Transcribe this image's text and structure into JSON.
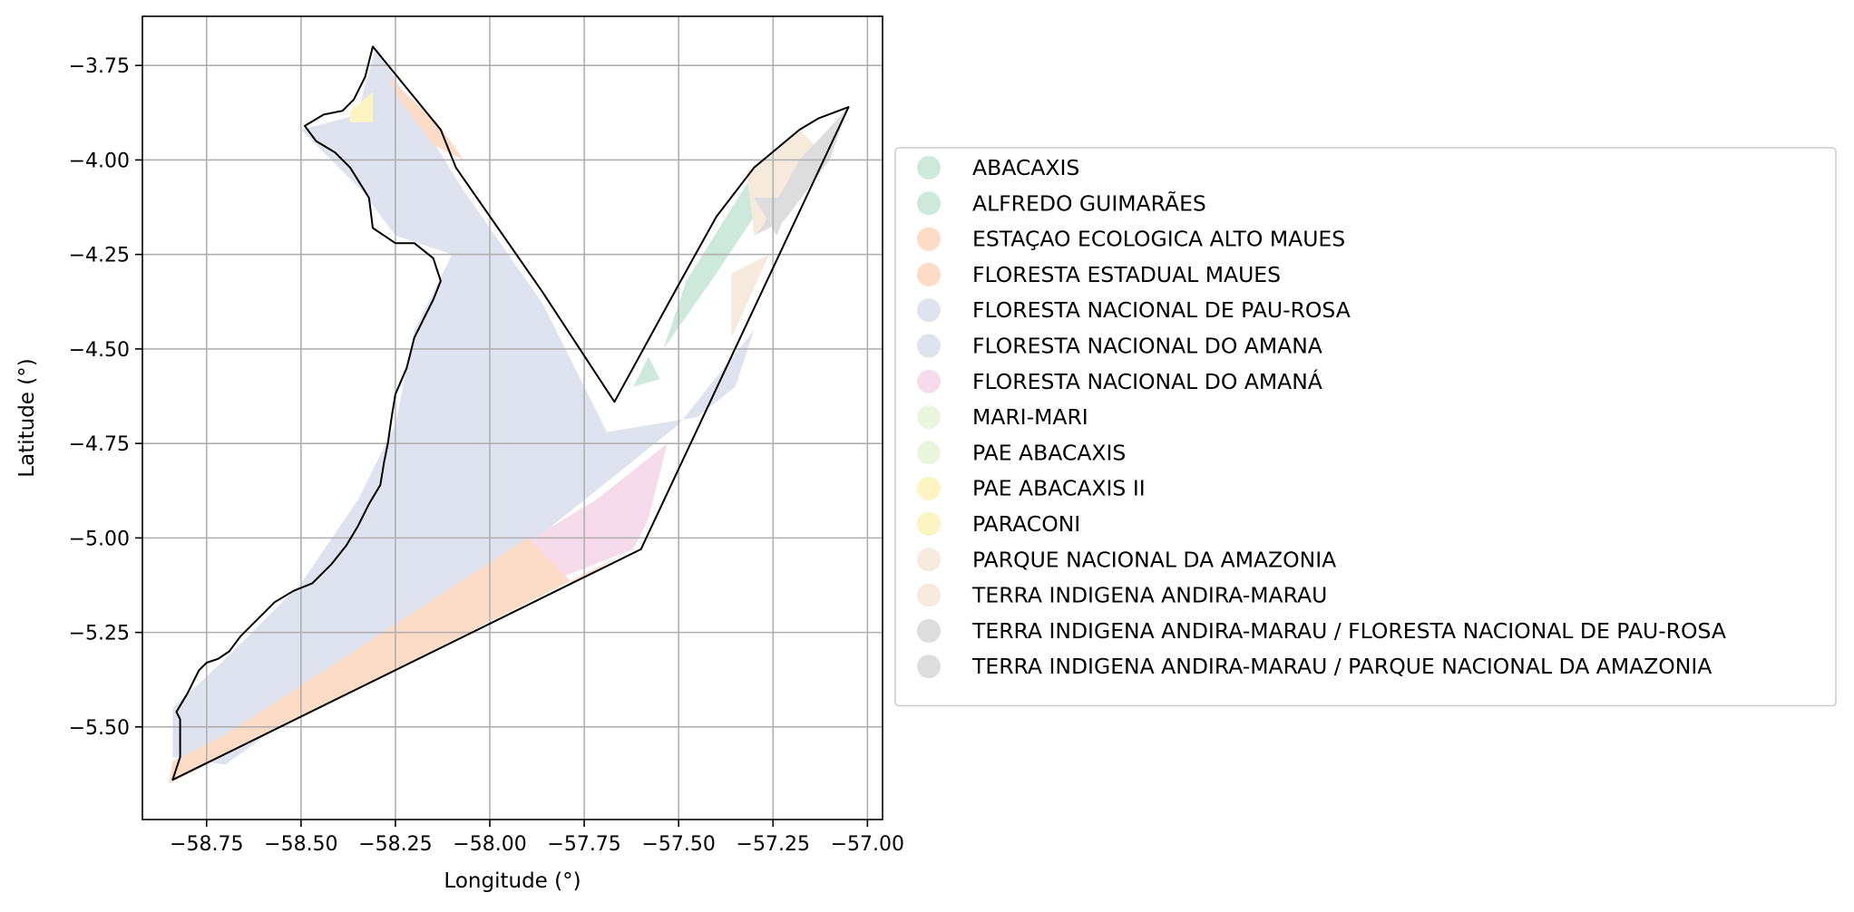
{
  "chart_data": {
    "type": "map",
    "title": "",
    "xlabel": "Longitude (°)",
    "ylabel": "Latitude (°)",
    "xlim": [
      -58.92,
      -56.96
    ],
    "ylim": [
      -5.745,
      -3.62
    ],
    "xticks": [
      -58.75,
      -58.5,
      -58.25,
      -58.0,
      -57.75,
      -57.5,
      -57.25,
      -57.0
    ],
    "xtick_labels": [
      "−58.75",
      "−58.50",
      "−58.25",
      "−58.00",
      "−57.75",
      "−57.50",
      "−57.25",
      "−57.00"
    ],
    "yticks": [
      -3.75,
      -4.0,
      -4.25,
      -4.5,
      -4.75,
      -5.0,
      -5.25,
      -5.5
    ],
    "ytick_labels": [
      "−3.75",
      "−4.00",
      "−4.25",
      "−4.50",
      "−4.75",
      "−5.00",
      "−5.25",
      "−5.50"
    ],
    "grid": true,
    "legend_position": "right",
    "legend": [
      {
        "label": "ABACAXIS",
        "color": "#cde9db"
      },
      {
        "label": "ALFREDO GUIMARÃES",
        "color": "#cde9db"
      },
      {
        "label": "ESTAÇAO ECOLOGICA ALTO MAUES",
        "color": "#fcdcc6"
      },
      {
        "label": "FLORESTA ESTADUAL MAUES",
        "color": "#fcdcc6"
      },
      {
        "label": "FLORESTA NACIONAL DE PAU-ROSA",
        "color": "#dfe3ef"
      },
      {
        "label": "FLORESTA NACIONAL DO AMANA",
        "color": "#dfe3ef"
      },
      {
        "label": "FLORESTA NACIONAL DO AMANÁ",
        "color": "#f6dbeb"
      },
      {
        "label": "MARI-MARI",
        "color": "#eaf6dc"
      },
      {
        "label": "PAE ABACAXIS",
        "color": "#eaf6dc"
      },
      {
        "label": "PAE ABACAXIS II",
        "color": "#fdf4c4"
      },
      {
        "label": "PARACONI",
        "color": "#fdf4c4"
      },
      {
        "label": "PARQUE NACIONAL DA AMAZONIA",
        "color": "#f5eadc"
      },
      {
        "label": "TERRA INDIGENA ANDIRA-MARAU",
        "color": "#f5eadc"
      },
      {
        "label": "TERRA INDIGENA ANDIRA-MARAU / FLORESTA NACIONAL DE PAU-ROSA",
        "color": "#dddddd"
      },
      {
        "label": "TERRA INDIGENA ANDIRA-MARAU / PARQUE NACIONAL DA AMAZONIA",
        "color": "#dddddd"
      }
    ],
    "regions": [
      {
        "name": "FLORESTA NACIONAL DE PAU-ROSA",
        "color": "#dfe3ef",
        "coords": [
          [
            -58.3,
            -3.7
          ],
          [
            -58.2,
            -3.87
          ],
          [
            -58.07,
            -4.08
          ],
          [
            -57.86,
            -4.38
          ],
          [
            -57.69,
            -4.72
          ],
          [
            -57.45,
            -4.68
          ],
          [
            -57.35,
            -4.6
          ],
          [
            -57.3,
            -4.45
          ],
          [
            -57.5,
            -4.7
          ],
          [
            -57.85,
            -4.98
          ],
          [
            -58.7,
            -5.6
          ],
          [
            -58.84,
            -5.58
          ],
          [
            -58.84,
            -5.45
          ],
          [
            -58.7,
            -5.32
          ],
          [
            -58.5,
            -5.12
          ],
          [
            -58.35,
            -4.9
          ],
          [
            -58.25,
            -4.7
          ],
          [
            -58.2,
            -4.45
          ],
          [
            -58.1,
            -4.25
          ],
          [
            -58.25,
            -4.2
          ],
          [
            -58.34,
            -4.08
          ],
          [
            -58.5,
            -3.92
          ],
          [
            -58.35,
            -3.88
          ],
          [
            -58.33,
            -3.8
          ]
        ]
      },
      {
        "name": "FLORESTA NACIONAL DO AMANÁ",
        "color": "#f6dbeb",
        "coords": [
          [
            -57.53,
            -4.75
          ],
          [
            -57.58,
            -4.95
          ],
          [
            -57.62,
            -5.03
          ],
          [
            -57.8,
            -5.1
          ],
          [
            -57.92,
            -5.02
          ],
          [
            -57.72,
            -4.9
          ]
        ]
      },
      {
        "name": "FLORESTA ESTADUAL MAUES",
        "color": "#fcdcc6",
        "coords": [
          [
            -57.9,
            -5.0
          ],
          [
            -57.78,
            -5.12
          ],
          [
            -57.62,
            -5.03
          ],
          [
            -58.85,
            -5.65
          ],
          [
            -58.84,
            -5.59
          ],
          [
            -58.7,
            -5.52
          ]
        ]
      },
      {
        "name": "ESTAÇAO ECOLOGICA ALTO MAUES",
        "color": "#fcdcc6",
        "coords": [
          [
            -58.27,
            -3.78
          ],
          [
            -58.14,
            -3.9
          ],
          [
            -58.07,
            -4.0
          ],
          [
            -58.15,
            -3.96
          ],
          [
            -58.24,
            -3.84
          ]
        ]
      },
      {
        "name": "ABACAXIS",
        "color": "#cde9db",
        "coords": [
          [
            -57.28,
            -4.0
          ],
          [
            -57.48,
            -4.32
          ],
          [
            -57.54,
            -4.5
          ],
          [
            -57.4,
            -4.3
          ],
          [
            -57.3,
            -4.15
          ]
        ]
      },
      {
        "name": "ALFREDO GUIMARÃES",
        "color": "#cde9db",
        "coords": [
          [
            -57.62,
            -4.6
          ],
          [
            -57.58,
            -4.52
          ],
          [
            -57.55,
            -4.58
          ]
        ]
      },
      {
        "name": "PAE ABACAXIS II",
        "color": "#fdf4c4",
        "coords": [
          [
            -58.37,
            -3.87
          ],
          [
            -58.31,
            -3.82
          ],
          [
            -58.31,
            -3.9
          ],
          [
            -58.37,
            -3.9
          ]
        ]
      },
      {
        "name": "PARQUE NACIONAL DA AMAZONIA",
        "color": "#f5eadc",
        "coords": [
          [
            -57.18,
            -3.92
          ],
          [
            -57.27,
            -4.0
          ],
          [
            -57.32,
            -4.03
          ],
          [
            -57.3,
            -4.2
          ],
          [
            -57.22,
            -4.15
          ],
          [
            -57.1,
            -4.0
          ]
        ]
      },
      {
        "name": "TERRA INDIGENA ANDIRA-MARAU",
        "color": "#f5eadc",
        "coords": [
          [
            -57.36,
            -4.3
          ],
          [
            -57.26,
            -4.25
          ],
          [
            -57.36,
            -4.47
          ]
        ]
      },
      {
        "name": "TERRA INDIGENA ANDIRA-MARAU / FLORESTA NACIONAL DE PAU-ROSA",
        "color": "#dddddd",
        "coords": [
          [
            -57.3,
            -4.2
          ],
          [
            -57.22,
            -4.16
          ],
          [
            -57.1,
            -4.0
          ],
          [
            -57.05,
            -3.86
          ],
          [
            -57.18,
            -4.0
          ],
          [
            -57.28,
            -4.18
          ]
        ]
      },
      {
        "name": "TERRA INDIGENA ANDIRA-MARAU / PARQUE NACIONAL DA AMAZONIA",
        "color": "#dddddd",
        "coords": [
          [
            -57.3,
            -4.1
          ],
          [
            -57.2,
            -4.1
          ],
          [
            -57.24,
            -4.2
          ]
        ]
      }
    ],
    "boundary": [
      [
        -58.31,
        -3.7
      ],
      [
        -58.13,
        -3.92
      ],
      [
        -58.09,
        -4.02
      ],
      [
        -57.86,
        -4.35
      ],
      [
        -57.67,
        -4.64
      ],
      [
        -57.5,
        -4.33
      ],
      [
        -57.4,
        -4.15
      ],
      [
        -57.3,
        -4.02
      ],
      [
        -57.18,
        -3.92
      ],
      [
        -57.13,
        -3.89
      ],
      [
        -57.05,
        -3.86
      ],
      [
        -57.6,
        -5.03
      ],
      [
        -58.84,
        -5.64
      ],
      [
        -58.82,
        -5.58
      ],
      [
        -58.82,
        -5.48
      ],
      [
        -58.83,
        -5.46
      ],
      [
        -58.8,
        -5.41
      ],
      [
        -58.77,
        -5.35
      ],
      [
        -58.75,
        -5.33
      ],
      [
        -58.72,
        -5.32
      ],
      [
        -58.69,
        -5.3
      ],
      [
        -58.66,
        -5.26
      ],
      [
        -58.61,
        -5.21
      ],
      [
        -58.57,
        -5.17
      ],
      [
        -58.52,
        -5.14
      ],
      [
        -58.47,
        -5.12
      ],
      [
        -58.42,
        -5.07
      ],
      [
        -58.38,
        -5.02
      ],
      [
        -58.35,
        -4.97
      ],
      [
        -58.32,
        -4.91
      ],
      [
        -58.29,
        -4.86
      ],
      [
        -58.28,
        -4.8
      ],
      [
        -58.27,
        -4.75
      ],
      [
        -58.26,
        -4.68
      ],
      [
        -58.25,
        -4.62
      ],
      [
        -58.22,
        -4.55
      ],
      [
        -58.2,
        -4.47
      ],
      [
        -58.17,
        -4.41
      ],
      [
        -58.15,
        -4.37
      ],
      [
        -58.13,
        -4.32
      ],
      [
        -58.15,
        -4.26
      ],
      [
        -58.2,
        -4.22
      ],
      [
        -58.25,
        -4.22
      ],
      [
        -58.31,
        -4.18
      ],
      [
        -58.32,
        -4.1
      ],
      [
        -58.37,
        -4.02
      ],
      [
        -58.41,
        -3.98
      ],
      [
        -58.46,
        -3.95
      ],
      [
        -58.49,
        -3.91
      ],
      [
        -58.44,
        -3.88
      ],
      [
        -58.39,
        -3.87
      ],
      [
        -58.36,
        -3.84
      ],
      [
        -58.33,
        -3.78
      ]
    ]
  }
}
